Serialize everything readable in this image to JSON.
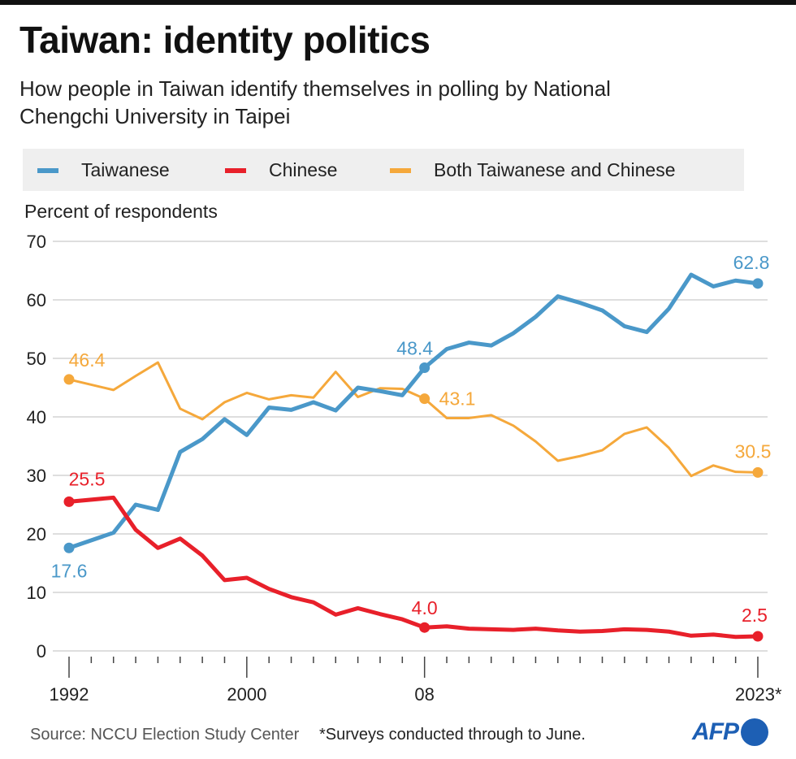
{
  "title": "Taiwan: identity politics",
  "subtitle": "How people in Taiwan identify themselves in polling by National Chengchi University in Taipei",
  "legend": [
    {
      "label": "Taiwanese",
      "color": "#4a98c9"
    },
    {
      "label": "Chinese",
      "color": "#e8202a"
    },
    {
      "label": "Both Taiwanese and Chinese",
      "color": "#f5a83b"
    }
  ],
  "source": "Source: NCCU Election Study Center",
  "note": "*Surveys conducted through to June.",
  "logo": "AFP",
  "chart_data": {
    "type": "line",
    "title": "Taiwan: identity politics",
    "ylabel": "Percent of respondents",
    "ylim": [
      0,
      70
    ],
    "yticks": [
      0,
      10,
      20,
      30,
      40,
      50,
      60,
      70
    ],
    "xlim": [
      1992,
      2023
    ],
    "xtick_labels": [
      {
        "year": 1992,
        "label": "1992"
      },
      {
        "year": 2000,
        "label": "2000"
      },
      {
        "year": 2008,
        "label": "08"
      },
      {
        "year": 2023,
        "label": "2023*"
      }
    ],
    "grid": true,
    "legend_position": "top",
    "x": [
      1992,
      1994,
      1995,
      1996,
      1997,
      1998,
      1999,
      2000,
      2001,
      2002,
      2003,
      2004,
      2005,
      2006,
      2007,
      2008,
      2009,
      2010,
      2011,
      2012,
      2013,
      2014,
      2015,
      2016,
      2017,
      2018,
      2019,
      2020,
      2021,
      2022,
      2023
    ],
    "series": [
      {
        "name": "Taiwanese",
        "color": "#4a98c9",
        "values": [
          17.6,
          20.2,
          25.0,
          24.1,
          34.0,
          36.2,
          39.6,
          36.9,
          41.6,
          41.2,
          42.5,
          41.1,
          45.0,
          44.4,
          43.7,
          48.4,
          51.6,
          52.7,
          52.2,
          54.3,
          57.1,
          60.6,
          59.5,
          58.2,
          55.5,
          54.5,
          58.5,
          64.3,
          62.3,
          63.3,
          62.8
        ],
        "labels": [
          {
            "year": 1992,
            "text": "17.6"
          },
          {
            "year": 2008,
            "text": "48.4"
          },
          {
            "year": 2023,
            "text": "62.8"
          }
        ]
      },
      {
        "name": "Chinese",
        "color": "#e8202a",
        "values": [
          25.5,
          26.2,
          20.7,
          17.6,
          19.2,
          16.3,
          12.1,
          12.5,
          10.6,
          9.2,
          8.3,
          6.2,
          7.3,
          6.3,
          5.4,
          4.0,
          4.2,
          3.8,
          3.7,
          3.6,
          3.8,
          3.5,
          3.3,
          3.4,
          3.7,
          3.6,
          3.3,
          2.6,
          2.8,
          2.4,
          2.5
        ],
        "labels": [
          {
            "year": 1992,
            "text": "25.5"
          },
          {
            "year": 2008,
            "text": "4.0"
          },
          {
            "year": 2023,
            "text": "2.5"
          }
        ]
      },
      {
        "name": "Both Taiwanese and Chinese",
        "color": "#f5a83b",
        "values": [
          46.4,
          44.6,
          47.0,
          49.3,
          41.4,
          39.6,
          42.5,
          44.1,
          43.0,
          43.7,
          43.3,
          47.7,
          43.4,
          44.9,
          44.8,
          43.1,
          39.8,
          39.8,
          40.3,
          38.5,
          35.8,
          32.5,
          33.3,
          34.3,
          37.1,
          38.2,
          34.7,
          29.9,
          31.7,
          30.6,
          30.5
        ],
        "labels": [
          {
            "year": 1992,
            "text": "46.4"
          },
          {
            "year": 2008,
            "text": "43.1"
          },
          {
            "year": 2023,
            "text": "30.5"
          }
        ]
      }
    ]
  }
}
